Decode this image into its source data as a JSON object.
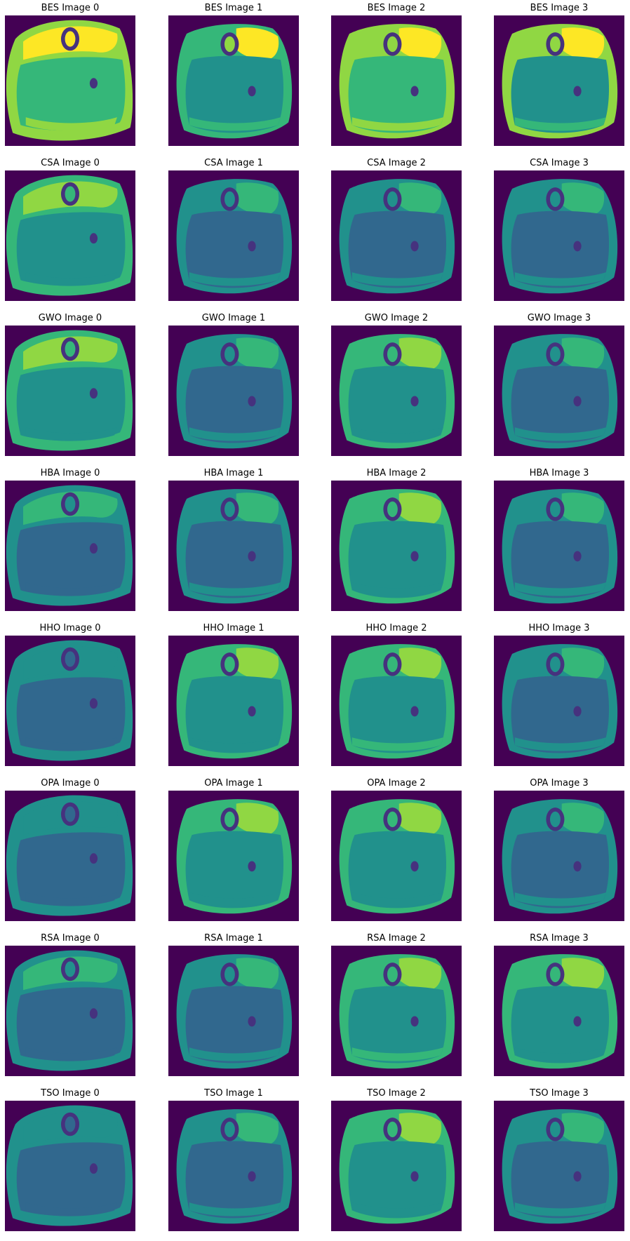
{
  "colors": {
    "background": "#440154",
    "low": "#3b528b",
    "mid_low": "#31688e",
    "mid": "#21918c",
    "mid_high": "#35b779",
    "high": "#90d743",
    "top": "#fde725",
    "dark": "#46327e"
  },
  "figure": {
    "rows": [
      {
        "id": "BES",
        "titles": [
          "BES Image 0",
          "BES Image 1",
          "BES Image 2",
          "BES Image 3"
        ],
        "brightness": [
          0.9,
          0.78,
          0.88,
          0.8
        ]
      },
      {
        "id": "CSA",
        "titles": [
          "CSA Image 0",
          "CSA Image 1",
          "CSA Image 2",
          "CSA Image 3"
        ],
        "brightness": [
          0.55,
          0.45,
          0.45,
          0.42
        ]
      },
      {
        "id": "GWO",
        "titles": [
          "GWO Image 0",
          "GWO Image 1",
          "GWO Image 2",
          "GWO Image 3"
        ],
        "brightness": [
          0.55,
          0.48,
          0.5,
          0.4
        ]
      },
      {
        "id": "HBA",
        "titles": [
          "HBA Image 0",
          "HBA Image 1",
          "HBA Image 2",
          "HBA Image 3"
        ],
        "brightness": [
          0.3,
          0.42,
          0.52,
          0.42
        ]
      },
      {
        "id": "HHO",
        "titles": [
          "HHO Image 0",
          "HHO Image 1",
          "HHO Image 2",
          "HHO Image 3"
        ],
        "brightness": [
          0.28,
          0.52,
          0.62,
          0.4
        ]
      },
      {
        "id": "OPA",
        "titles": [
          "OPA Image 0",
          "OPA Image 1",
          "OPA Image 2",
          "OPA Image 3"
        ],
        "brightness": [
          0.22,
          0.58,
          0.55,
          0.45
        ]
      },
      {
        "id": "RSA",
        "titles": [
          "RSA Image 0",
          "RSA Image 1",
          "RSA Image 2",
          "RSA Image 3"
        ],
        "brightness": [
          0.32,
          0.48,
          0.62,
          0.5
        ]
      },
      {
        "id": "TSO",
        "titles": [
          "TSO Image 0",
          "TSO Image 1",
          "TSO Image 2",
          "TSO Image 3"
        ],
        "brightness": [
          0.25,
          0.45,
          0.52,
          0.42
        ]
      }
    ]
  }
}
